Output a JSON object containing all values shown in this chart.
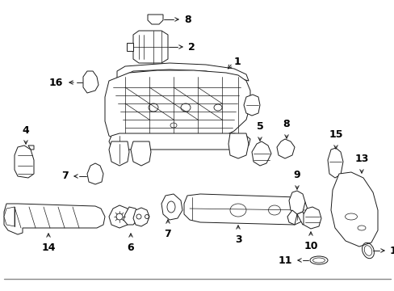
{
  "bg_color": "#ffffff",
  "line_color": "#1a1a1a",
  "text_color": "#000000",
  "fontsize": 9,
  "arrow_color": "#000000",
  "fig_w": 4.89,
  "fig_h": 3.6,
  "dpi": 100
}
